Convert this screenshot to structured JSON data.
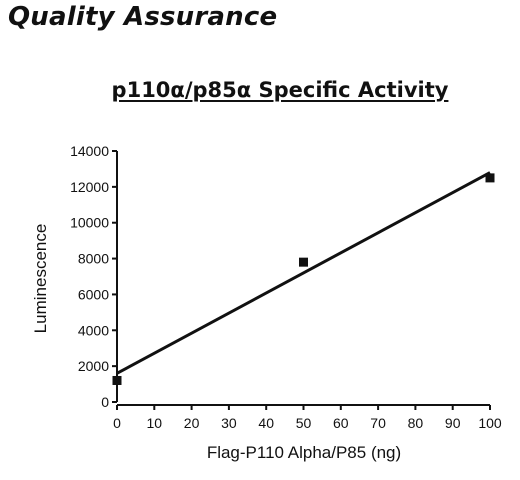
{
  "page": {
    "heading": "Quality Assurance"
  },
  "chart_data": {
    "type": "scatter",
    "title": "p110α/p85α Specific Activity",
    "xlabel": "Flag-P110 Alpha/P85 (ng)",
    "ylabel": "Luminescence",
    "xlim": [
      0,
      100
    ],
    "ylim": [
      0,
      14000
    ],
    "x_ticks": [
      0,
      10,
      20,
      30,
      40,
      50,
      60,
      70,
      80,
      90,
      100
    ],
    "y_ticks": [
      0,
      2000,
      4000,
      6000,
      8000,
      10000,
      12000,
      14000
    ],
    "points": [
      {
        "x": 0,
        "y": 1200
      },
      {
        "x": 50,
        "y": 7800
      },
      {
        "x": 100,
        "y": 12500
      }
    ],
    "fit_line": {
      "x": [
        0,
        100
      ],
      "y": [
        1600,
        12800
      ]
    },
    "grid": false,
    "colors": {
      "marks": "#111111"
    }
  }
}
